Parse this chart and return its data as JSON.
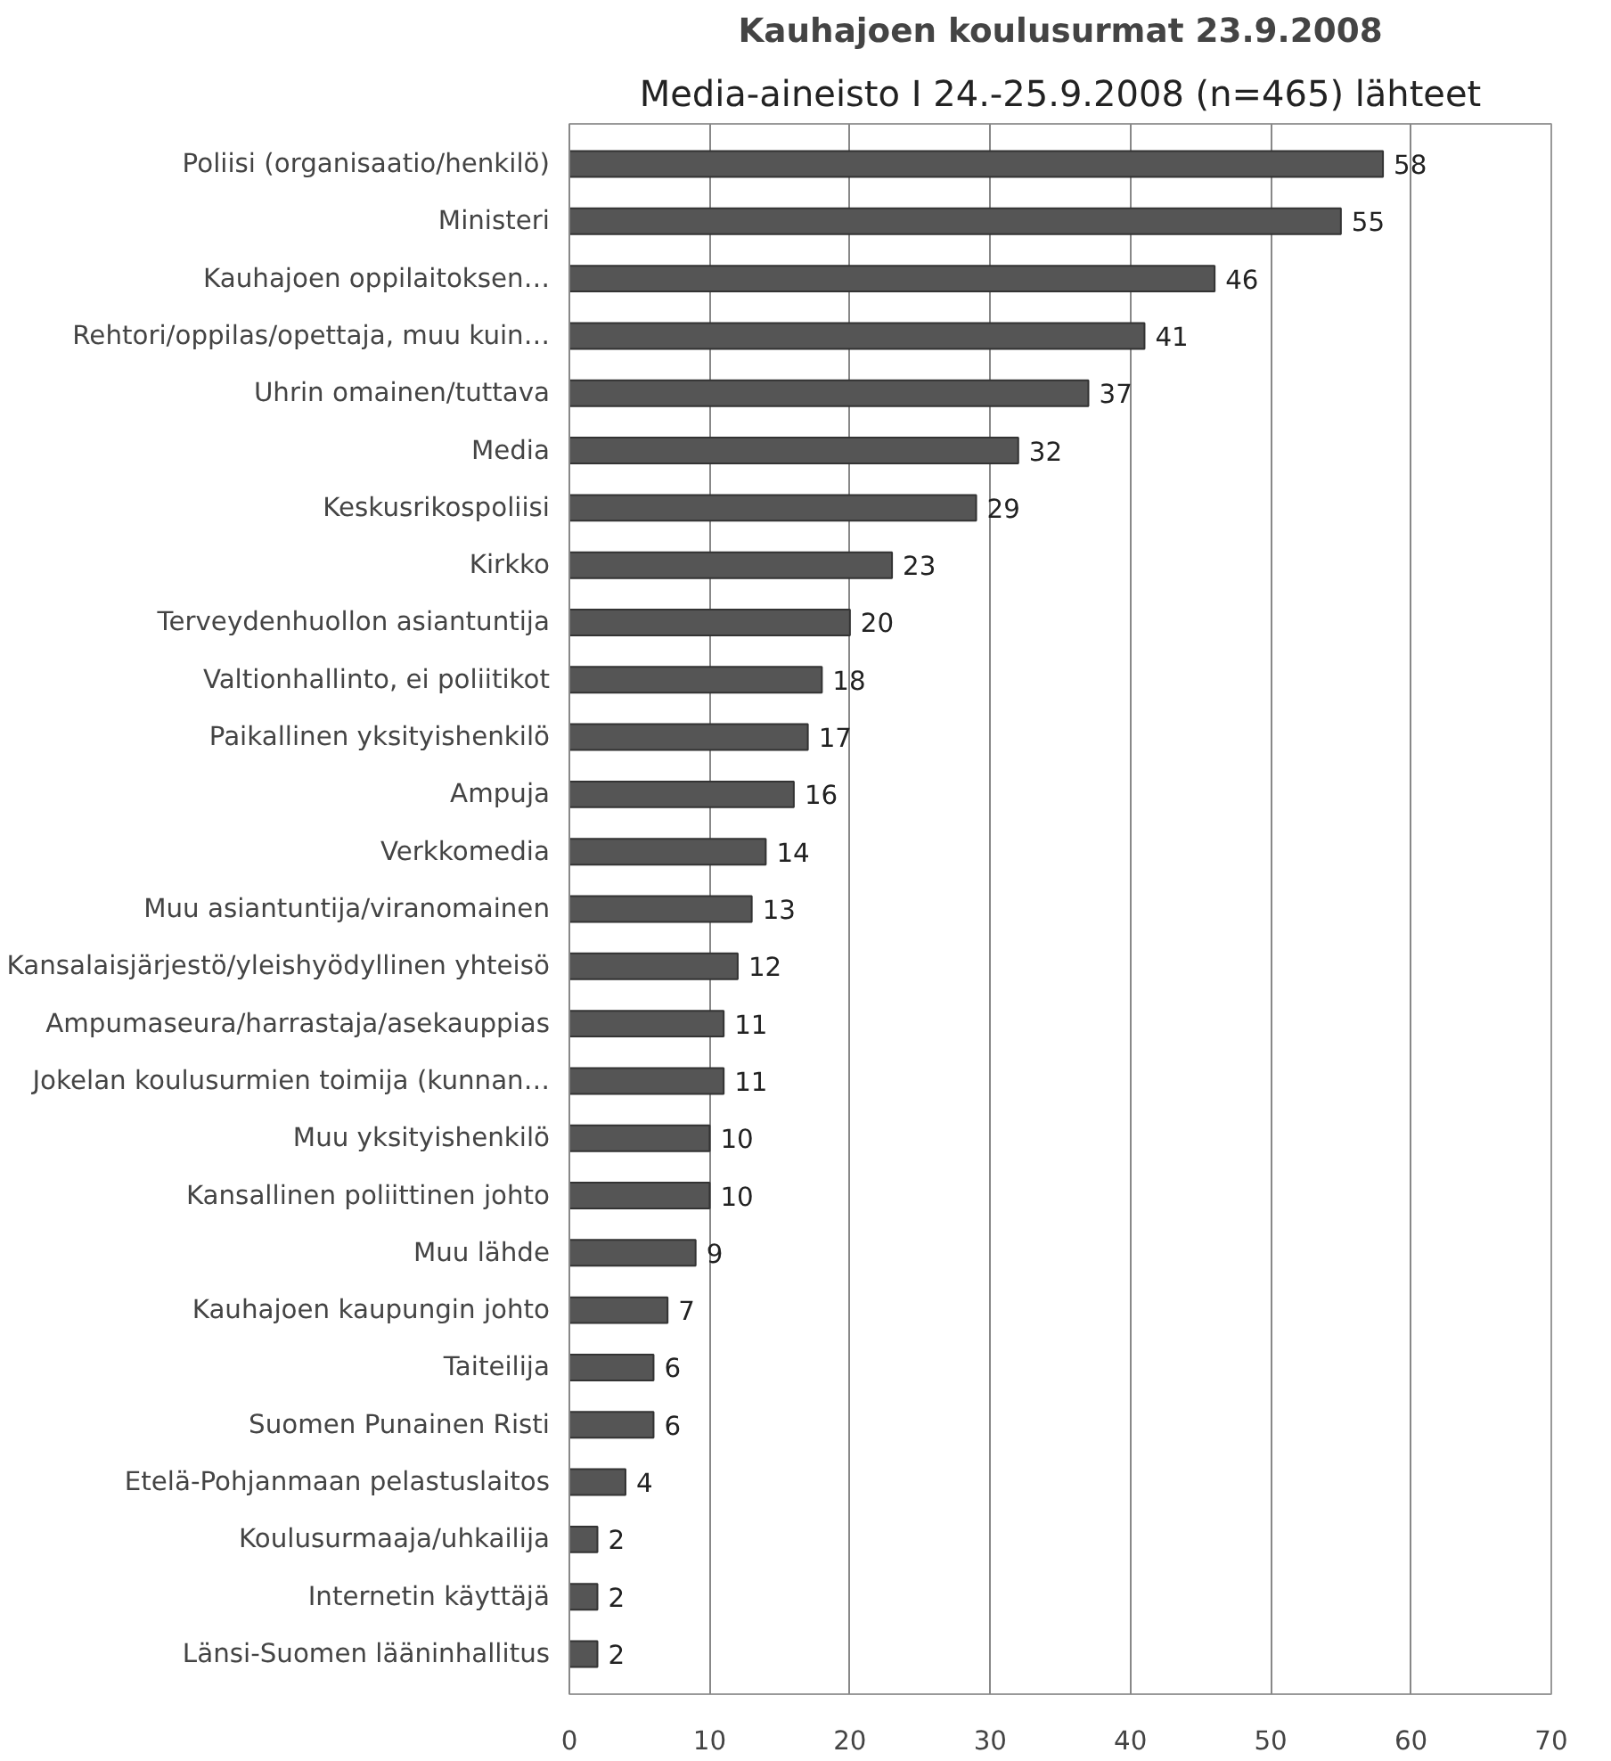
{
  "chart_data": {
    "type": "bar",
    "orientation": "horizontal",
    "title": "Kauhajoen koulusurmat 23.9.2008",
    "subtitle": "Media-aineisto I 24.-25.9.2008 (n=465) lähteet",
    "categories": [
      "Poliisi (organisaatio/henkilö)",
      "Ministeri",
      "Kauhajoen oppilaitoksen…",
      "Rehtori/oppilas/opettaja, muu kuin…",
      "Uhrin omainen/tuttava",
      "Media",
      "Keskusrikospoliisi",
      "Kirkko",
      "Terveydenhuollon asiantuntija",
      "Valtionhallinto, ei poliitikot",
      "Paikallinen yksityishenkilö",
      "Ampuja",
      "Verkkomedia",
      "Muu asiantuntija/viranomainen",
      "Kansalaisjärjestö/yleishyödyllinen yhteisö",
      "Ampumaseura/harrastaja/asekauppias",
      "Jokelan koulusurmien toimija (kunnan…",
      "Muu yksityishenkilö",
      "Kansallinen poliittinen johto",
      "Muu lähde",
      "Kauhajoen kaupungin johto",
      "Taiteilija",
      "Suomen Punainen Risti",
      "Etelä-Pohjanmaan pelastuslaitos",
      "Koulusurmaaja/uhkailija",
      "Internetin käyttäjä",
      "Länsi-Suomen lääninhallitus"
    ],
    "values": [
      58,
      55,
      46,
      41,
      37,
      32,
      29,
      23,
      20,
      18,
      17,
      16,
      14,
      13,
      12,
      11,
      11,
      10,
      10,
      9,
      7,
      6,
      6,
      4,
      2,
      2,
      2
    ],
    "color": "#555555",
    "data_labels": true,
    "xlim": [
      0,
      70
    ],
    "xticks": [
      0,
      10,
      20,
      30,
      40,
      50,
      60,
      70
    ],
    "grid": "x"
  }
}
